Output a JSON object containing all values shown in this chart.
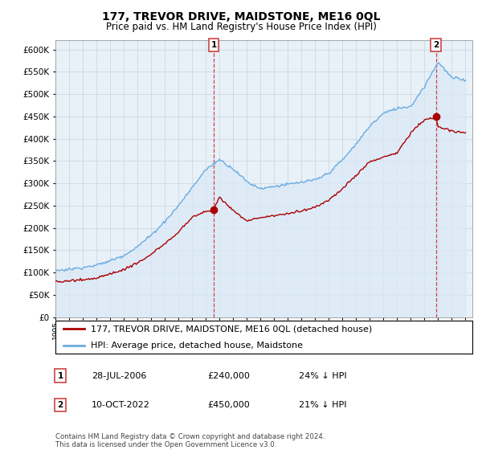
{
  "title": "177, TREVOR DRIVE, MAIDSTONE, ME16 0QL",
  "subtitle": "Price paid vs. HM Land Registry's House Price Index (HPI)",
  "legend_line1": "177, TREVOR DRIVE, MAIDSTONE, ME16 0QL (detached house)",
  "legend_line2": "HPI: Average price, detached house, Maidstone",
  "annotation1_date": "28-JUL-2006",
  "annotation1_price": "£240,000",
  "annotation1_hpi": "24% ↓ HPI",
  "annotation2_date": "10-OCT-2022",
  "annotation2_price": "£450,000",
  "annotation2_hpi": "21% ↓ HPI",
  "footer": "Contains HM Land Registry data © Crown copyright and database right 2024.\nThis data is licensed under the Open Government Licence v3.0.",
  "hpi_color": "#6aace0",
  "hpi_fill_color": "#daeaf7",
  "price_color": "#aa0000",
  "marker_color": "#aa0000",
  "dashed_color": "#cc4444",
  "plot_bg_color": "#e8f0f8",
  "ylim": [
    0,
    620000
  ],
  "yticks": [
    0,
    50000,
    100000,
    150000,
    200000,
    250000,
    300000,
    350000,
    400000,
    450000,
    500000,
    550000,
    600000
  ],
  "background_color": "#ffffff",
  "grid_color": "#c8d4e0"
}
